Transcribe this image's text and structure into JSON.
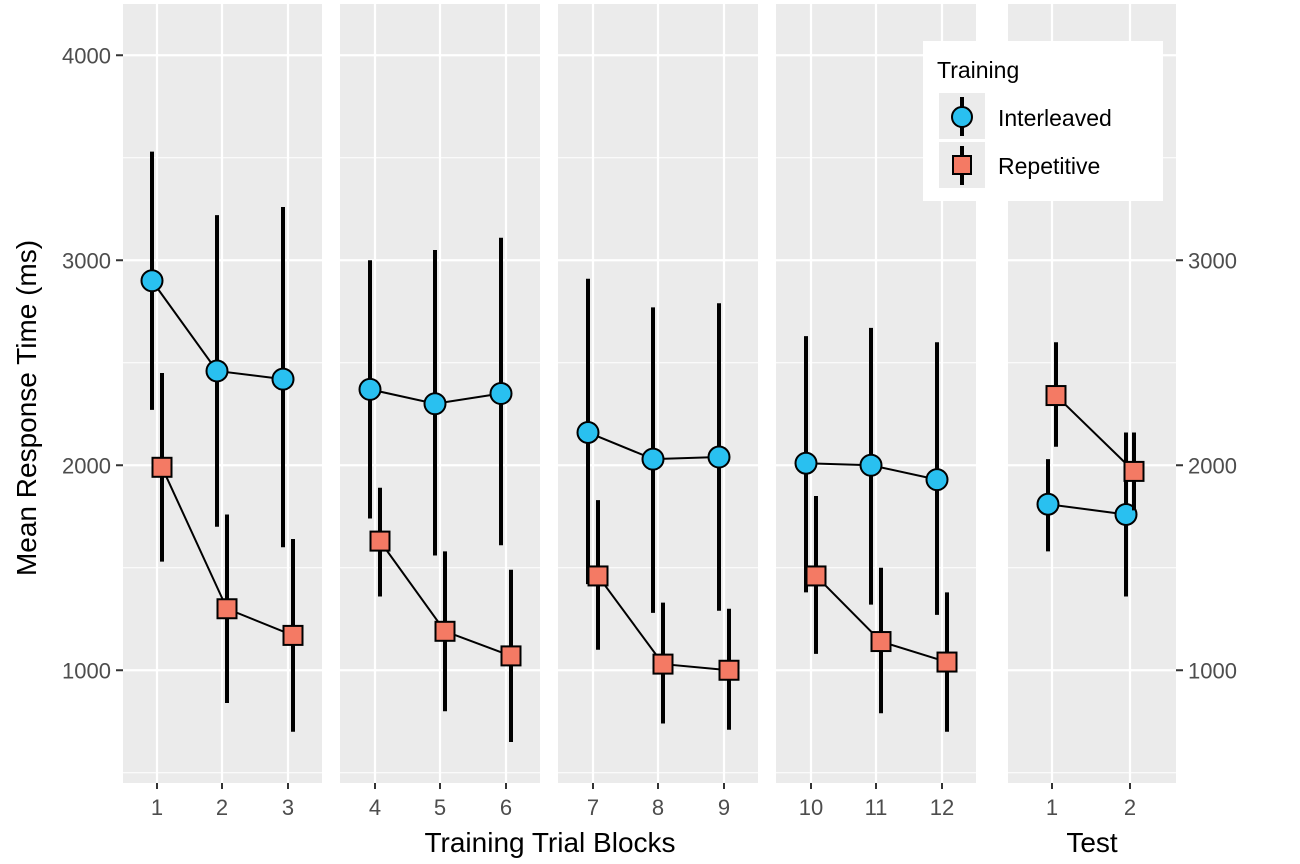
{
  "colors": {
    "panel_bg": "#ebebeb",
    "grid": "#ffffff",
    "tick_text": "#4d4d4d",
    "interleaved": "#29c0f0",
    "repetitive": "#f47a64",
    "line": "#000000"
  },
  "chart_data": {
    "type": "line",
    "title": "",
    "ylabel": "Mean Response Time (ms)",
    "ylim": [
      450,
      4250
    ],
    "left_yticks": [
      1000,
      2000,
      3000,
      4000
    ],
    "right_yticks": [
      1000,
      2000,
      3000
    ],
    "legend": {
      "title": "Training",
      "entries": [
        {
          "label": "Interleaved",
          "series": "interleaved",
          "shape": "circle"
        },
        {
          "label": "Repetitive",
          "series": "repetitive",
          "shape": "square"
        }
      ]
    },
    "group_labels": {
      "training": "Training Trial Blocks",
      "test": "Test"
    },
    "panels": [
      {
        "group": "training",
        "x": [
          "1",
          "2",
          "3"
        ],
        "series": [
          {
            "name": "interleaved",
            "mean": [
              2900,
              2460,
              2420
            ],
            "lower": [
              2270,
              1700,
              1600
            ],
            "upper": [
              3530,
              3220,
              3260
            ]
          },
          {
            "name": "repetitive",
            "mean": [
              1990,
              1300,
              1170
            ],
            "lower": [
              1530,
              840,
              700
            ],
            "upper": [
              2450,
              1760,
              1640
            ]
          }
        ]
      },
      {
        "group": "training",
        "x": [
          "4",
          "5",
          "6"
        ],
        "series": [
          {
            "name": "interleaved",
            "mean": [
              2370,
              2300,
              2350
            ],
            "lower": [
              1740,
              1560,
              1610
            ],
            "upper": [
              3000,
              3050,
              3110
            ]
          },
          {
            "name": "repetitive",
            "mean": [
              1630,
              1190,
              1070
            ],
            "lower": [
              1360,
              800,
              650
            ],
            "upper": [
              1890,
              1580,
              1490
            ]
          }
        ]
      },
      {
        "group": "training",
        "x": [
          "7",
          "8",
          "9"
        ],
        "series": [
          {
            "name": "interleaved",
            "mean": [
              2160,
              2030,
              2040
            ],
            "lower": [
              1420,
              1280,
              1290
            ],
            "upper": [
              2910,
              2770,
              2790
            ]
          },
          {
            "name": "repetitive",
            "mean": [
              1460,
              1030,
              1000
            ],
            "lower": [
              1100,
              740,
              710
            ],
            "upper": [
              1830,
              1330,
              1300
            ]
          }
        ]
      },
      {
        "group": "training",
        "x": [
          "10",
          "11",
          "12"
        ],
        "series": [
          {
            "name": "interleaved",
            "mean": [
              2010,
              2000,
              1930
            ],
            "lower": [
              1380,
              1320,
              1270
            ],
            "upper": [
              2630,
              2670,
              2600
            ]
          },
          {
            "name": "repetitive",
            "mean": [
              1460,
              1140,
              1040
            ],
            "lower": [
              1080,
              790,
              700
            ],
            "upper": [
              1850,
              1500,
              1380
            ]
          }
        ]
      },
      {
        "group": "test",
        "x": [
          "1",
          "2"
        ],
        "series": [
          {
            "name": "interleaved",
            "mean": [
              1810,
              1760
            ],
            "lower": [
              1580,
              1360
            ],
            "upper": [
              2030,
              2160
            ]
          },
          {
            "name": "repetitive",
            "mean": [
              2340,
              1970
            ],
            "lower": [
              2090,
              1780
            ],
            "upper": [
              2600,
              2160
            ]
          }
        ]
      }
    ]
  }
}
